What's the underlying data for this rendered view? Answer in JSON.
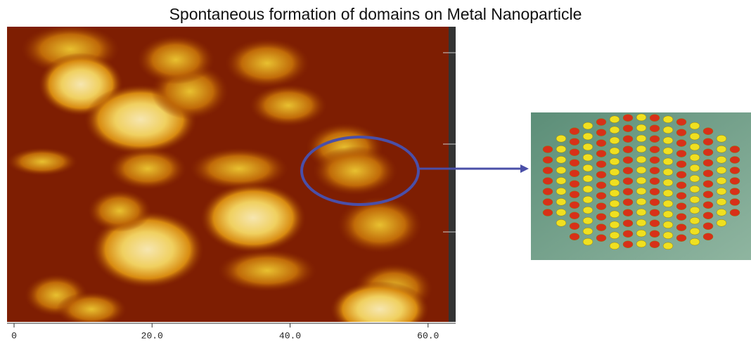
{
  "title": "Spontaneous formation of domains on Metal Nanoparticle",
  "image_axis": {
    "xlim": [
      0,
      64
    ],
    "xticks": [
      0,
      {
        "value": 20,
        "label": "20.0"
      },
      {
        "value": 40,
        "label": "40.0"
      },
      {
        "value": 60,
        "label": "60.0"
      }
    ]
  }
}
